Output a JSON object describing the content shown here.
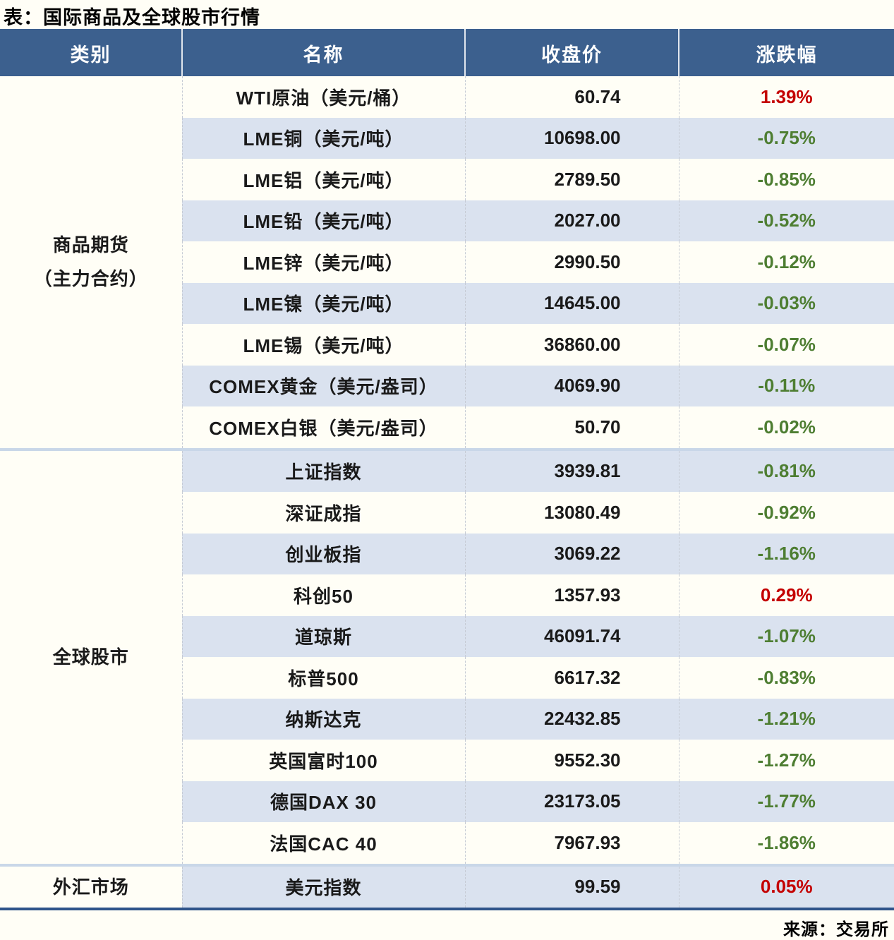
{
  "page": {
    "title": "表：国际商品及全球股市行情",
    "source": "来源：交易所"
  },
  "colors": {
    "header_bg": "#3C608E",
    "header_text": "#FFFFFF",
    "stripe_bg": "#DAE2EF",
    "paper_bg": "#FFFEF6",
    "up_red": "#C40000",
    "down_green": "#4E7E32",
    "section_divider": "#C9D7E8",
    "table_bottom_border": "#2F548A"
  },
  "table": {
    "headers": {
      "category": "类别",
      "name": "名称",
      "close": "收盘价",
      "change": "涨跌幅"
    },
    "sections": [
      {
        "category": "商品期货（主力合约）",
        "lines": [
          "商品期货",
          "（主力合约）"
        ],
        "rows": [
          {
            "name": "WTI原油（美元/桶）",
            "close": "60.74",
            "change": "1.39%",
            "direction": "up"
          },
          {
            "name": "LME铜（美元/吨）",
            "close": "10698.00",
            "change": "-0.75%",
            "direction": "down"
          },
          {
            "name": "LME铝（美元/吨）",
            "close": "2789.50",
            "change": "-0.85%",
            "direction": "down"
          },
          {
            "name": "LME铅（美元/吨）",
            "close": "2027.00",
            "change": "-0.52%",
            "direction": "down"
          },
          {
            "name": "LME锌（美元/吨）",
            "close": "2990.50",
            "change": "-0.12%",
            "direction": "down"
          },
          {
            "name": "LME镍（美元/吨）",
            "close": "14645.00",
            "change": "-0.03%",
            "direction": "down"
          },
          {
            "name": "LME锡（美元/吨）",
            "close": "36860.00",
            "change": "-0.07%",
            "direction": "down"
          },
          {
            "name": "COMEX黄金（美元/盎司）",
            "close": "4069.90",
            "change": "-0.11%",
            "direction": "down"
          },
          {
            "name": "COMEX白银（美元/盎司）",
            "close": "50.70",
            "change": "-0.02%",
            "direction": "down"
          }
        ]
      },
      {
        "category": "全球股市",
        "lines": [
          "全球股市"
        ],
        "rows": [
          {
            "name": "上证指数",
            "close": "3939.81",
            "change": "-0.81%",
            "direction": "down"
          },
          {
            "name": "深证成指",
            "close": "13080.49",
            "change": "-0.92%",
            "direction": "down"
          },
          {
            "name": "创业板指",
            "close": "3069.22",
            "change": "-1.16%",
            "direction": "down"
          },
          {
            "name": "科创50",
            "close": "1357.93",
            "change": "0.29%",
            "direction": "up"
          },
          {
            "name": "道琼斯",
            "close": "46091.74",
            "change": "-1.07%",
            "direction": "down"
          },
          {
            "name": "标普500",
            "close": "6617.32",
            "change": "-0.83%",
            "direction": "down"
          },
          {
            "name": "纳斯达克",
            "close": "22432.85",
            "change": "-1.21%",
            "direction": "down"
          },
          {
            "name": "英国富时100",
            "close": "9552.30",
            "change": "-1.27%",
            "direction": "down"
          },
          {
            "name": "德国DAX 30",
            "close": "23173.05",
            "change": "-1.77%",
            "direction": "down"
          },
          {
            "name": "法国CAC 40",
            "close": "7967.93",
            "change": "-1.86%",
            "direction": "down"
          }
        ]
      },
      {
        "category": "外汇市场",
        "lines": [
          "外汇市场"
        ],
        "rows": [
          {
            "name": "美元指数",
            "close": "99.59",
            "change": "0.05%",
            "direction": "up"
          }
        ]
      }
    ]
  },
  "chart_data": {
    "type": "table",
    "title": "表：国际商品及全球股市行情",
    "source": "来源：交易所",
    "columns": [
      "类别",
      "名称",
      "收盘价",
      "涨跌幅"
    ],
    "rows": [
      [
        "商品期货（主力合约）",
        "WTI原油（美元/桶）",
        60.74,
        "1.39%"
      ],
      [
        "商品期货（主力合约）",
        "LME铜（美元/吨）",
        10698.0,
        "-0.75%"
      ],
      [
        "商品期货（主力合约）",
        "LME铝（美元/吨）",
        2789.5,
        "-0.85%"
      ],
      [
        "商品期货（主力合约）",
        "LME铅（美元/吨）",
        2027.0,
        "-0.52%"
      ],
      [
        "商品期货（主力合约）",
        "LME锌（美元/吨）",
        2990.5,
        "-0.12%"
      ],
      [
        "商品期货（主力合约）",
        "LME镍（美元/吨）",
        14645.0,
        "-0.03%"
      ],
      [
        "商品期货（主力合约）",
        "LME锡（美元/吨）",
        36860.0,
        "-0.07%"
      ],
      [
        "商品期货（主力合约）",
        "COMEX黄金（美元/盎司）",
        4069.9,
        "-0.11%"
      ],
      [
        "商品期货（主力合约）",
        "COMEX白银（美元/盎司）",
        50.7,
        "-0.02%"
      ],
      [
        "全球股市",
        "上证指数",
        3939.81,
        "-0.81%"
      ],
      [
        "全球股市",
        "深证成指",
        13080.49,
        "-0.92%"
      ],
      [
        "全球股市",
        "创业板指",
        3069.22,
        "-1.16%"
      ],
      [
        "全球股市",
        "科创50",
        1357.93,
        "0.29%"
      ],
      [
        "全球股市",
        "道琼斯",
        46091.74,
        "-1.07%"
      ],
      [
        "全球股市",
        "标普500",
        6617.32,
        "-0.83%"
      ],
      [
        "全球股市",
        "纳斯达克",
        22432.85,
        "-1.21%"
      ],
      [
        "全球股市",
        "英国富时100",
        9552.3,
        "-1.27%"
      ],
      [
        "全球股市",
        "德国DAX 30",
        23173.05,
        "-1.77%"
      ],
      [
        "全球股市",
        "法国CAC 40",
        7967.93,
        "-1.86%"
      ],
      [
        "外汇市场",
        "美元指数",
        99.59,
        "0.05%"
      ]
    ]
  }
}
